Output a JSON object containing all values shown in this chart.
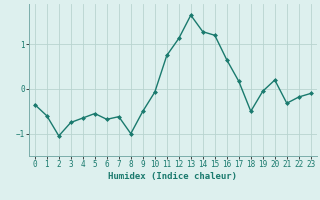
{
  "x": [
    0,
    1,
    2,
    3,
    4,
    5,
    6,
    7,
    8,
    9,
    10,
    11,
    12,
    13,
    14,
    15,
    16,
    17,
    18,
    19,
    20,
    21,
    22,
    23
  ],
  "y": [
    -0.35,
    -0.6,
    -1.05,
    -0.75,
    -0.65,
    -0.55,
    -0.68,
    -0.62,
    -1.0,
    -0.5,
    -0.07,
    0.75,
    1.13,
    1.65,
    1.28,
    1.2,
    0.65,
    0.17,
    -0.5,
    -0.05,
    0.2,
    -0.32,
    -0.18,
    -0.1
  ],
  "line_color": "#1a7a6e",
  "marker": "D",
  "marker_size": 2.0,
  "bg_color": "#ddf0ee",
  "grid_color": "#b8d4d0",
  "xlabel": "Humidex (Indice chaleur)",
  "ylim": [
    -1.5,
    1.9
  ],
  "xlim": [
    -0.5,
    23.5
  ],
  "yticks": [
    -1,
    0,
    1
  ],
  "xticks": [
    0,
    1,
    2,
    3,
    4,
    5,
    6,
    7,
    8,
    9,
    10,
    11,
    12,
    13,
    14,
    15,
    16,
    17,
    18,
    19,
    20,
    21,
    22,
    23
  ],
  "axis_fontsize": 6.5,
  "tick_fontsize": 5.5,
  "linewidth": 1.0
}
